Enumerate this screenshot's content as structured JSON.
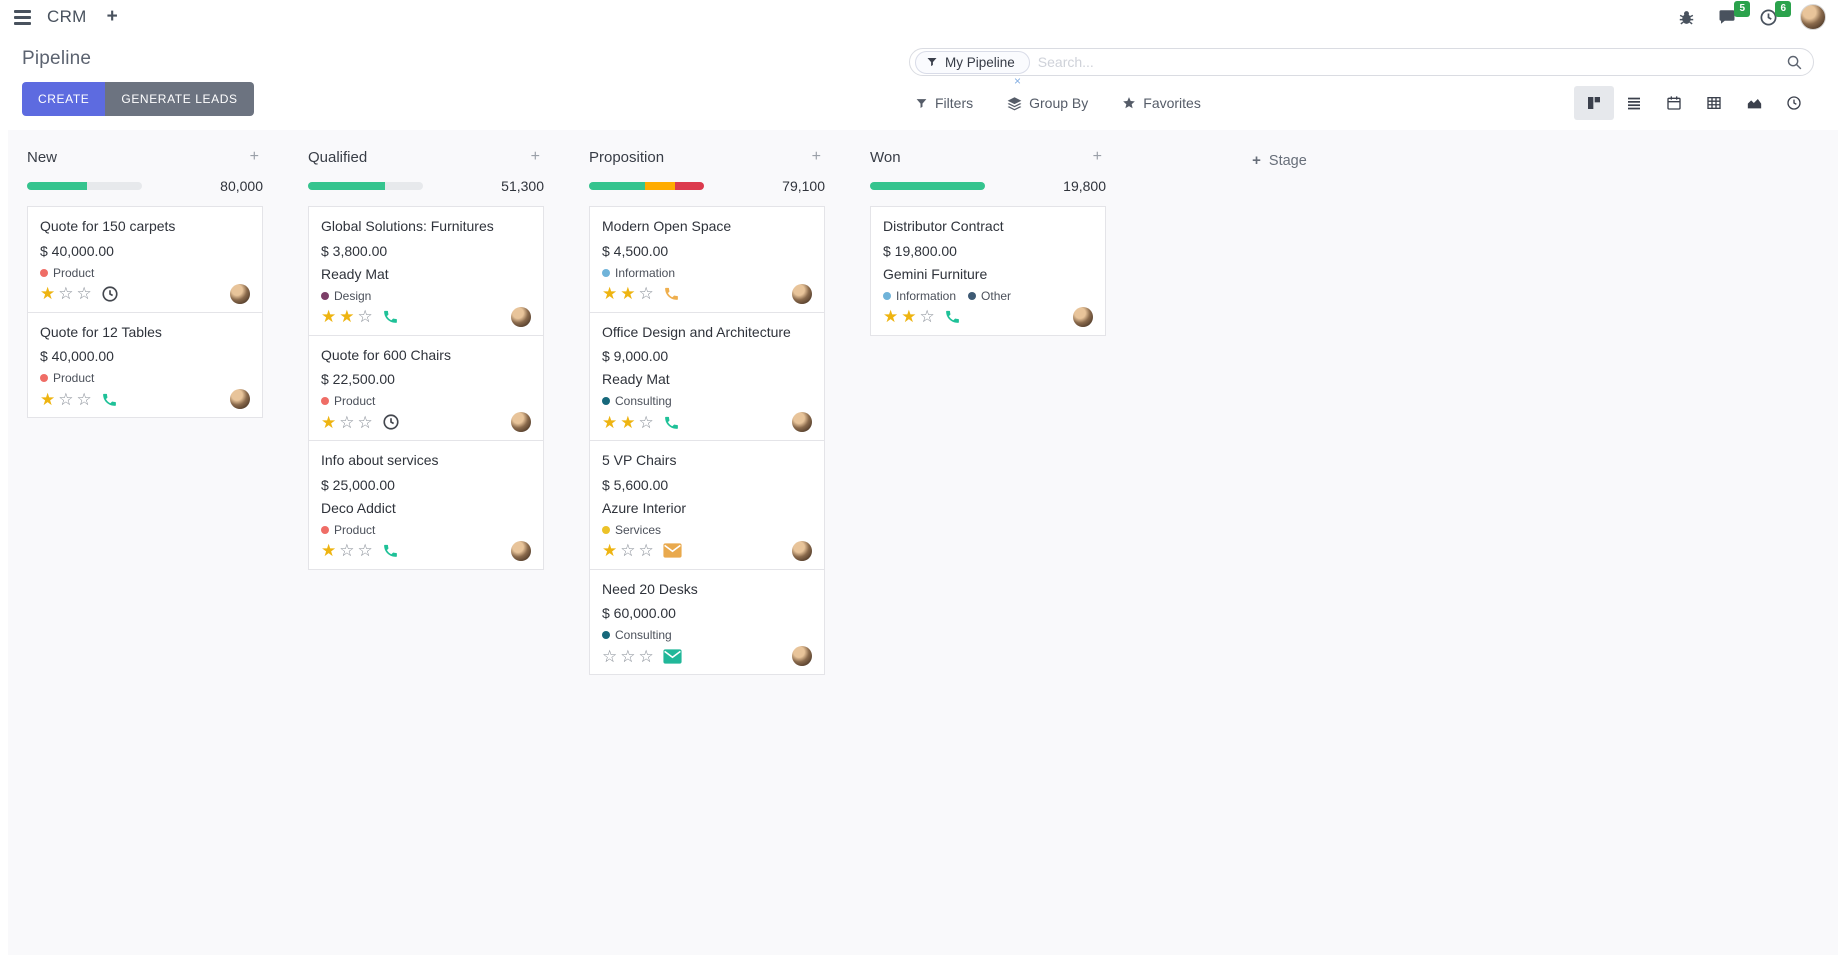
{
  "navbar": {
    "app_name": "CRM",
    "messages_badge": "5",
    "activities_badge": "6"
  },
  "control_panel": {
    "title": "Pipeline",
    "create_label": "CREATE",
    "generate_leads_label": "GENERATE LEADS",
    "search": {
      "facet_label": "My Pipeline",
      "placeholder": "Search...",
      "remove_glyph": "×"
    },
    "filters_label": "Filters",
    "group_by_label": "Group By",
    "favorites_label": "Favorites"
  },
  "icons": {
    "menu": "hamburger-icon",
    "add": "plus-icon",
    "debug": "bug-icon",
    "messages": "chat-bubble-icon",
    "activities": "clock-icon",
    "facet": "funnel-icon",
    "search": "magnifier-icon",
    "views": [
      "kanban-icon",
      "list-icon",
      "calendar-icon",
      "pivot-icon",
      "graph-icon",
      "activity-clock-icon"
    ]
  },
  "colors": {
    "accent_create": "#5d6be0",
    "accent_generate": "#6c7380",
    "badge_green": "#2ba24c",
    "star_gold": "#eeb411",
    "progress_green": "#35c48e",
    "progress_orange": "#ffac00",
    "progress_red": "#dc3a4d"
  },
  "kanban": {
    "add_stage_label": "Stage",
    "columns": [
      {
        "title": "New",
        "total": "80,000",
        "progress": [
          {
            "color": "#35c48e",
            "pct": 52
          }
        ],
        "cards": [
          {
            "title": "Quote for 150 carpets",
            "amount": "$ 40,000.00",
            "partner": null,
            "tags": [
              {
                "label": "Product",
                "color": "#ef6d66"
              }
            ],
            "stars": 1,
            "activity": {
              "type": "clock",
              "color": "#43474e"
            }
          },
          {
            "title": "Quote for 12 Tables",
            "amount": "$ 40,000.00",
            "partner": null,
            "tags": [
              {
                "label": "Product",
                "color": "#ef6d66"
              }
            ],
            "stars": 1,
            "activity": {
              "type": "phone",
              "color": "#1fc198"
            }
          }
        ]
      },
      {
        "title": "Qualified",
        "total": "51,300",
        "progress": [
          {
            "color": "#35c48e",
            "pct": 67
          }
        ],
        "cards": [
          {
            "title": "Global Solutions: Furnitures",
            "amount": "$ 3,800.00",
            "partner": "Ready Mat",
            "tags": [
              {
                "label": "Design",
                "color": "#7c3f68"
              }
            ],
            "stars": 2,
            "activity": {
              "type": "phone",
              "color": "#1fc198"
            }
          },
          {
            "title": "Quote for 600 Chairs",
            "amount": "$ 22,500.00",
            "partner": null,
            "tags": [
              {
                "label": "Product",
                "color": "#ef6d66"
              }
            ],
            "stars": 1,
            "activity": {
              "type": "clock",
              "color": "#43474e"
            }
          },
          {
            "title": "Info about services",
            "amount": "$ 25,000.00",
            "partner": "Deco Addict",
            "tags": [
              {
                "label": "Product",
                "color": "#ef6d66"
              }
            ],
            "stars": 1,
            "activity": {
              "type": "phone",
              "color": "#1fc198"
            }
          }
        ]
      },
      {
        "title": "Proposition",
        "total": "79,100",
        "progress": [
          {
            "color": "#35c48e",
            "pct": 49
          },
          {
            "color": "#ffac00",
            "pct": 26
          },
          {
            "color": "#dc3a4d",
            "pct": 25
          }
        ],
        "cards": [
          {
            "title": "Modern Open Space",
            "amount": "$ 4,500.00",
            "partner": null,
            "tags": [
              {
                "label": "Information",
                "color": "#6fb3d9"
              }
            ],
            "stars": 2,
            "activity": {
              "type": "phone",
              "color": "#efaf4e"
            }
          },
          {
            "title": "Office Design and Architecture",
            "amount": "$ 9,000.00",
            "partner": "Ready Mat",
            "tags": [
              {
                "label": "Consulting",
                "color": "#17687b"
              }
            ],
            "stars": 2,
            "activity": {
              "type": "phone",
              "color": "#1fc198"
            }
          },
          {
            "title": "5 VP Chairs",
            "amount": "$ 5,600.00",
            "partner": "Azure Interior",
            "tags": [
              {
                "label": "Services",
                "color": "#ecc228"
              }
            ],
            "stars": 1,
            "activity": {
              "type": "mail",
              "color": "#e9a94d"
            }
          },
          {
            "title": "Need 20 Desks",
            "amount": "$ 60,000.00",
            "partner": null,
            "tags": [
              {
                "label": "Consulting",
                "color": "#17687b"
              }
            ],
            "stars": 0,
            "activity": {
              "type": "mail",
              "color": "#21b799"
            }
          }
        ]
      },
      {
        "title": "Won",
        "total": "19,800",
        "progress": [
          {
            "color": "#35c48e",
            "pct": 100
          }
        ],
        "cards": [
          {
            "title": "Distributor Contract",
            "amount": "$ 19,800.00",
            "partner": "Gemini Furniture",
            "tags": [
              {
                "label": "Information",
                "color": "#6fb3d9"
              },
              {
                "label": "Other",
                "color": "#3e5a74"
              }
            ],
            "stars": 2,
            "activity": {
              "type": "phone",
              "color": "#1fc198"
            }
          }
        ]
      }
    ]
  }
}
